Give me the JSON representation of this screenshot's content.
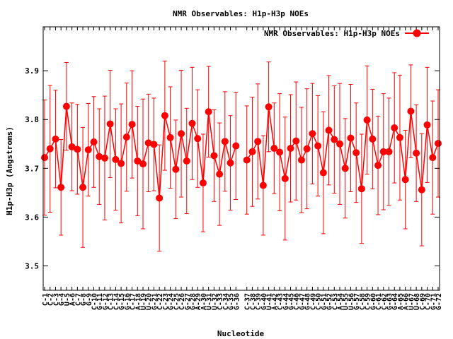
{
  "chart_data": {
    "type": "line",
    "title": "NMR Observables: H1p-H3p NOEs",
    "xlabel": "Nucleotide",
    "ylabel": "H1p-H3p (Angstroms)",
    "ylim": [
      3.45,
      3.99
    ],
    "yticks": [
      3.5,
      3.6,
      3.7,
      3.8,
      3.9
    ],
    "ytick_labels": [
      "3.5",
      "3.6",
      "3.7",
      "3.8",
      "3.9"
    ],
    "grid": false,
    "legend_position": "top-right",
    "categories": [
      "C-1",
      "C-2",
      "C-3",
      "G-4",
      "U-5",
      "A-6",
      "C-7",
      "G-8",
      "G-9",
      "C-10",
      "G-11",
      "G-12",
      "C-13",
      "C-14",
      "G-15",
      "G-16",
      "C-17",
      "A-18",
      "U-19",
      "U-20",
      "G-21",
      "C-22",
      "C-23",
      "G-24",
      "C-25",
      "C-26",
      "G-27",
      "G-28",
      "A-29",
      "A-30",
      "U-31",
      "U-32",
      "C-33",
      "C-34",
      "G-35",
      "G-36",
      "",
      "C-37",
      "C-38",
      "C-39",
      "G-40",
      "U-41",
      "A-42",
      "C-43",
      "G-44",
      "G-45",
      "C-46",
      "G-47",
      "G-48",
      "C-49",
      "C-50",
      "G-51",
      "G-52",
      "C-53",
      "A-54",
      "U-55",
      "U-56",
      "G-57",
      "C-58",
      "C-59",
      "G-60",
      "C-61",
      "C-62",
      "G-63",
      "G-64",
      "A-65",
      "A-66",
      "U-67",
      "U-68",
      "C-69",
      "C-70",
      "G-71",
      "G-72"
    ],
    "series": [
      {
        "name": "NMR Observables: H1p-H3p NOEs",
        "color": "#ff0000",
        "values": [
          3.722,
          3.74,
          3.76,
          3.661,
          3.827,
          3.744,
          3.739,
          3.661,
          3.738,
          3.754,
          3.724,
          3.721,
          3.791,
          3.718,
          3.71,
          3.764,
          3.79,
          3.715,
          3.709,
          3.752,
          3.749,
          3.639,
          3.808,
          3.763,
          3.698,
          3.771,
          3.715,
          3.792,
          3.761,
          3.67,
          3.816,
          3.726,
          3.688,
          3.755,
          3.711,
          3.746,
          null,
          3.717,
          3.734,
          3.755,
          3.665,
          3.826,
          3.741,
          3.733,
          3.679,
          3.741,
          3.756,
          3.717,
          3.74,
          3.771,
          3.746,
          3.691,
          3.778,
          3.759,
          3.75,
          3.7,
          3.762,
          3.732,
          3.658,
          3.799,
          3.76,
          3.706,
          3.734,
          3.734,
          3.783,
          3.763,
          3.677,
          3.817,
          3.731,
          3.656,
          3.789,
          3.722,
          3.751
        ],
        "errors": [
          0.118,
          0.13,
          0.1,
          0.098,
          0.09,
          0.09,
          0.092,
          0.123,
          0.095,
          0.093,
          0.098,
          0.127,
          0.11,
          0.104,
          0.122,
          0.111,
          0.11,
          0.112,
          0.133,
          0.1,
          0.095,
          0.109,
          0.112,
          0.104,
          0.101,
          0.13,
          0.108,
          0.115,
          0.1,
          0.1,
          0.093,
          0.094,
          0.105,
          0.102,
          0.097,
          0.11,
          null,
          0.111,
          0.112,
          0.118,
          0.102,
          0.092,
          0.093,
          0.12,
          0.126,
          0.11,
          0.121,
          0.108,
          0.123,
          0.103,
          0.103,
          0.125,
          0.112,
          0.11,
          0.124,
          0.102,
          0.11,
          0.102,
          0.112,
          0.111,
          0.102,
          0.101,
          0.119,
          0.11,
          0.113,
          0.128,
          0.101,
          0.095,
          0.099,
          0.115,
          0.118,
          0.116,
          0.11
        ]
      }
    ]
  }
}
